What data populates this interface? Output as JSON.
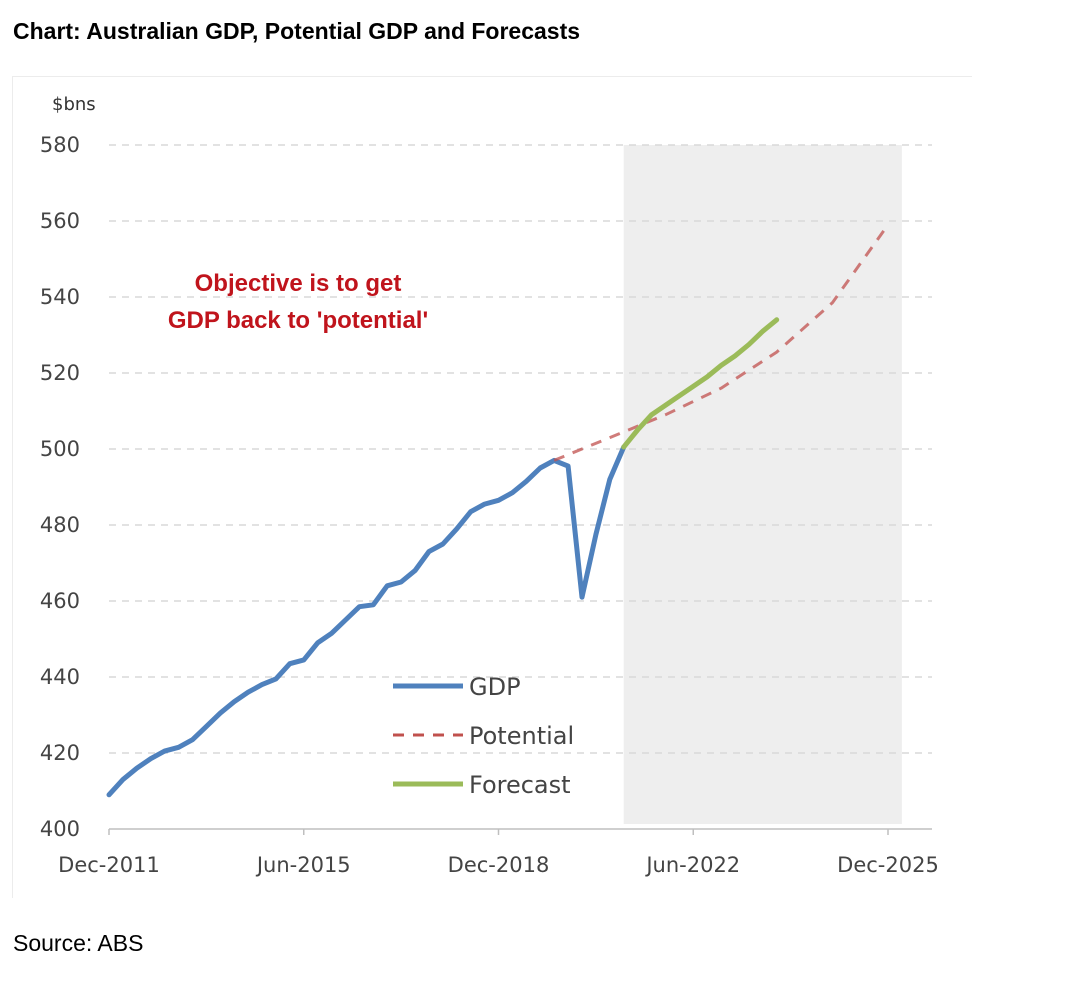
{
  "header": {
    "title": "Chart: Australian GDP, Potential GDP and Forecasts"
  },
  "footer": {
    "source": "Source: ABS"
  },
  "chart_data": {
    "type": "line",
    "title": "Chart: Australian GDP, Potential GDP and Forecasts",
    "ylabel": "$bns",
    "xlabel": "",
    "ylim": [
      400,
      580
    ],
    "yticks": [
      400,
      420,
      440,
      460,
      480,
      500,
      520,
      540,
      560,
      580
    ],
    "xlim": [
      "2011-12",
      "2026-03"
    ],
    "xticks": [
      {
        "date": "2011-12",
        "label": "Dec-2011"
      },
      {
        "date": "2015-06",
        "label": "Jun-2015"
      },
      {
        "date": "2018-12",
        "label": "Dec-2018"
      },
      {
        "date": "2022-06",
        "label": "Jun-2022"
      },
      {
        "date": "2025-12",
        "label": "Dec-2025"
      }
    ],
    "grid": "horizontal dashed",
    "legend_position": "bottom-center",
    "forecast_region": {
      "start": "2021-03",
      "end": "2026-03",
      "color": "#eeeeee"
    },
    "annotation": {
      "lines": [
        "Objective is to get",
        "GDP back to 'potential'"
      ],
      "color": "#c0141c"
    },
    "series": [
      {
        "name": "GDP",
        "color": "#4f81bd",
        "style": "solid",
        "points": [
          [
            "2011-12",
            409
          ],
          [
            "2012-03",
            413
          ],
          [
            "2012-06",
            416
          ],
          [
            "2012-09",
            418.5
          ],
          [
            "2012-12",
            420.5
          ],
          [
            "2013-03",
            421.5
          ],
          [
            "2013-06",
            423.5
          ],
          [
            "2013-09",
            427
          ],
          [
            "2013-12",
            430.5
          ],
          [
            "2014-03",
            433.5
          ],
          [
            "2014-06",
            436
          ],
          [
            "2014-09",
            438
          ],
          [
            "2014-12",
            439.5
          ],
          [
            "2015-03",
            443.5
          ],
          [
            "2015-06",
            444.5
          ],
          [
            "2015-09",
            449
          ],
          [
            "2015-12",
            451.5
          ],
          [
            "2016-03",
            455
          ],
          [
            "2016-06",
            458.5
          ],
          [
            "2016-09",
            459
          ],
          [
            "2016-12",
            464
          ],
          [
            "2017-03",
            465
          ],
          [
            "2017-06",
            468
          ],
          [
            "2017-09",
            473
          ],
          [
            "2017-12",
            475
          ],
          [
            "2018-03",
            479
          ],
          [
            "2018-06",
            483.5
          ],
          [
            "2018-09",
            485.5
          ],
          [
            "2018-12",
            486.5
          ],
          [
            "2019-03",
            488.5
          ],
          [
            "2019-06",
            491.5
          ],
          [
            "2019-09",
            495
          ],
          [
            "2019-12",
            497
          ],
          [
            "2020-03",
            495.5
          ],
          [
            "2020-06",
            461
          ],
          [
            "2020-09",
            477.5
          ],
          [
            "2020-12",
            492
          ],
          [
            "2021-03",
            500.5
          ]
        ]
      },
      {
        "name": "Potential",
        "color": "#c0504d",
        "style": "dashed",
        "points": [
          [
            "2019-12",
            497
          ],
          [
            "2020-12",
            503
          ],
          [
            "2021-12",
            509
          ],
          [
            "2022-12",
            516
          ],
          [
            "2023-12",
            525.5
          ],
          [
            "2024-12",
            538.5
          ],
          [
            "2025-12",
            559
          ]
        ]
      },
      {
        "name": "Forecast",
        "color": "#9bbb59",
        "style": "solid",
        "points": [
          [
            "2021-03",
            500.5
          ],
          [
            "2021-06",
            505
          ],
          [
            "2021-09",
            509
          ],
          [
            "2021-12",
            511.5
          ],
          [
            "2022-03",
            514
          ],
          [
            "2022-06",
            516.5
          ],
          [
            "2022-09",
            519
          ],
          [
            "2022-12",
            522
          ],
          [
            "2023-03",
            524.5
          ],
          [
            "2023-06",
            527.5
          ],
          [
            "2023-09",
            531
          ],
          [
            "2023-12",
            534
          ]
        ]
      }
    ]
  }
}
